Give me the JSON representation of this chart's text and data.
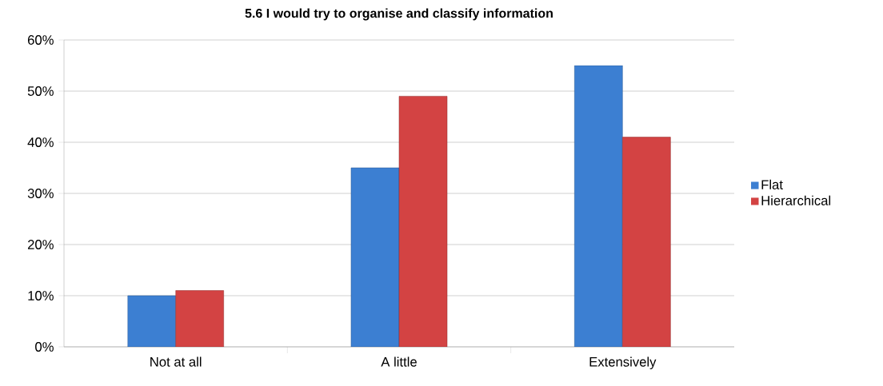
{
  "chart_data": {
    "type": "bar",
    "title": "5.6 I would try to organise and classify  information",
    "categories": [
      "Not at all",
      "A little",
      "Extensively"
    ],
    "series": [
      {
        "name": "Flat",
        "color": "#3c7fd2",
        "values": [
          10,
          35,
          55
        ]
      },
      {
        "name": "Hierarchical",
        "color": "#d34343",
        "values": [
          11,
          49,
          41
        ]
      }
    ],
    "ylim": [
      0,
      60
    ],
    "yticks": [
      {
        "value": 0,
        "label": "0%"
      },
      {
        "value": 10,
        "label": "10%"
      },
      {
        "value": 20,
        "label": "20%"
      },
      {
        "value": 30,
        "label": "30%"
      },
      {
        "value": 40,
        "label": "40%"
      },
      {
        "value": 50,
        "label": "50%"
      },
      {
        "value": 60,
        "label": "60%"
      }
    ],
    "grid": "y",
    "legend": "right"
  }
}
